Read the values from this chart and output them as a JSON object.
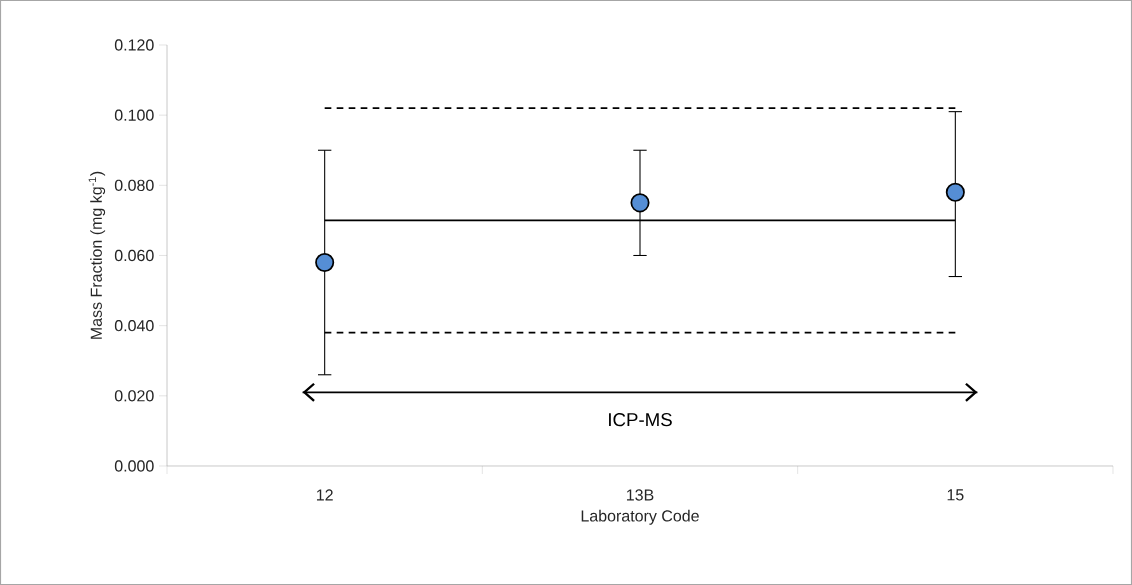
{
  "chart_data": {
    "type": "scatter",
    "xlabel": "Laboratory Code",
    "ylabel": "Mass Fraction (mg kg$^{-1}$)",
    "categories": [
      "12",
      "13B",
      "15"
    ],
    "series": [
      {
        "color": "#558ed5",
        "values": [
          0.058,
          0.075,
          0.078
        ],
        "errors": [
          [
            0.026,
            0.09
          ],
          [
            0.06,
            0.09
          ],
          [
            0.054,
            0.101
          ]
        ]
      }
    ],
    "marker": "circle",
    "ylim": [
      0,
      0.12
    ],
    "yticks": [
      {
        "value": 0,
        "label": "0.000"
      },
      {
        "value": 0.02,
        "label": "0.020"
      },
      {
        "value": 0.04,
        "label": "0.040"
      },
      {
        "value": 0.06,
        "label": "0.060"
      },
      {
        "value": 0.08,
        "label": "0.080"
      },
      {
        "value": 0.1,
        "label": "0.100"
      },
      {
        "value": 0.12,
        "label": "0.120"
      }
    ],
    "ref_lines": [
      {
        "axis": "y",
        "value": 0.07,
        "color": "#000000",
        "line_style": "solid"
      },
      {
        "axis": "y",
        "value": 0.102,
        "color": "#000000",
        "line_style": "dashed"
      },
      {
        "axis": "y",
        "value": 0.038,
        "color": "#000000",
        "line_style": "dashed"
      },
      {
        "axis": "y",
        "value": 0.021,
        "color": "#000000",
        "line_style": "solid",
        "label": "ICP-MS"
      }
    ]
  }
}
